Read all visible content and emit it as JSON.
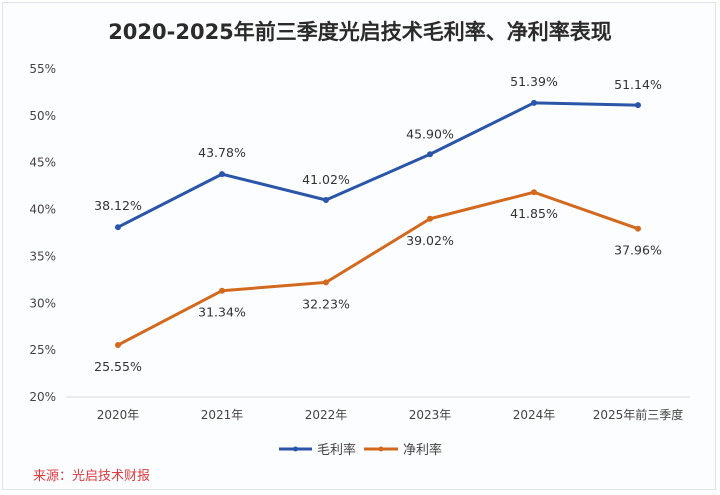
{
  "chart_data": {
    "type": "line",
    "title": "2020-2025年前三季度光启技术毛利率、净利率表现",
    "categories": [
      "2020年",
      "2021年",
      "2022年",
      "2023年",
      "2024年",
      "2025年前三季度"
    ],
    "series": [
      {
        "name": "毛利率",
        "color": "#2a55a8",
        "values": [
          38.12,
          43.78,
          41.02,
          45.9,
          51.39,
          51.14
        ],
        "labels": [
          "38.12%",
          "43.78%",
          "41.02%",
          "45.90%",
          "51.39%",
          "51.14%"
        ]
      },
      {
        "name": "净利率",
        "color": "#d2691e",
        "values": [
          25.55,
          31.34,
          32.23,
          39.02,
          41.85,
          37.96
        ],
        "labels": [
          "25.55%",
          "31.34%",
          "32.23%",
          "39.02%",
          "41.85%",
          "37.96%"
        ]
      }
    ],
    "yticks": [
      "20%",
      "25%",
      "30%",
      "35%",
      "40%",
      "45%",
      "50%",
      "55%"
    ],
    "ytick_values": [
      20,
      25,
      30,
      35,
      40,
      45,
      50,
      55
    ],
    "ylim": [
      20,
      55
    ],
    "xlabel": "",
    "ylabel": "",
    "grid": false,
    "legend": "bottom"
  },
  "source": "来源：光启技术财报"
}
